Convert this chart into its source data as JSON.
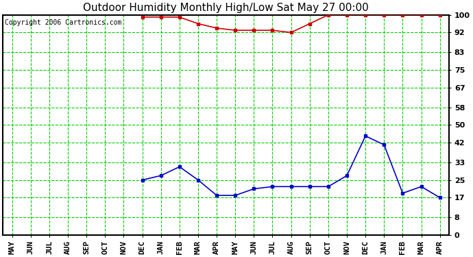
{
  "title": "Outdoor Humidity Monthly High/Low Sat May 27 00:00",
  "copyright": "Copyright 2006 Cartronics.com",
  "months": [
    "MAY",
    "JUN",
    "JUL",
    "AUG",
    "SEP",
    "OCT",
    "NOV",
    "DEC",
    "JAN",
    "FEB",
    "MAR",
    "APR",
    "MAY",
    "JUN",
    "JUL",
    "AUG",
    "SEP",
    "OCT",
    "NOV",
    "DEC",
    "JAN",
    "FEB",
    "MAR",
    "APR"
  ],
  "high_values": [
    null,
    null,
    null,
    null,
    null,
    null,
    null,
    99,
    99,
    99,
    96,
    94,
    93,
    93,
    93,
    92,
    96,
    100,
    100,
    100,
    100,
    100,
    100,
    100
  ],
  "low_values": [
    null,
    null,
    null,
    null,
    null,
    null,
    null,
    25,
    27,
    31,
    25,
    18,
    18,
    21,
    22,
    22,
    22,
    22,
    27,
    45,
    41,
    19,
    22,
    17
  ],
  "yticks": [
    0,
    8,
    17,
    25,
    33,
    42,
    50,
    58,
    67,
    75,
    83,
    92,
    100
  ],
  "ymin": 0,
  "ymax": 100,
  "high_color": "#cc0000",
  "low_color": "#0000cc",
  "bg_color": "#ffffff",
  "grid_color": "#00cc00",
  "vgrid_color": "#00cc00",
  "border_color": "#000000",
  "title_fontsize": 11,
  "copyright_fontsize": 7,
  "tick_fontsize": 8
}
